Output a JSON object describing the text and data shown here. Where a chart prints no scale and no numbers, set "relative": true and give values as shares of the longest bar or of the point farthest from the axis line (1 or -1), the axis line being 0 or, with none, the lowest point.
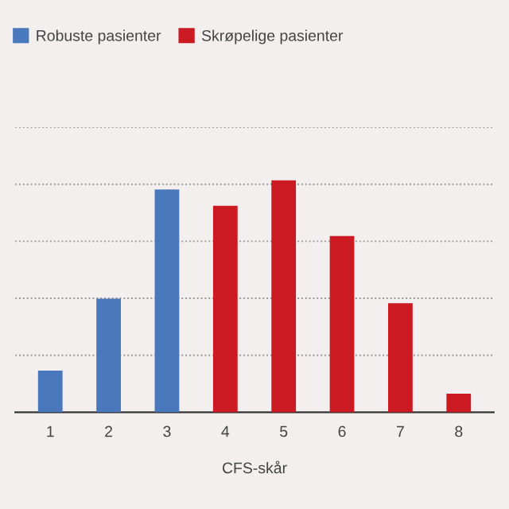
{
  "chart_data": {
    "type": "bar",
    "categories": [
      "1",
      "2",
      "3",
      "4",
      "5",
      "6",
      "7",
      "8"
    ],
    "xlabel": "CFS-skår",
    "relative": true,
    "grid": "y",
    "legend": "top left",
    "series": [
      {
        "name": "Robuste pasienter",
        "color": "#4a78bd",
        "values": [
          0.18,
          0.49,
          0.96,
          null,
          null,
          null,
          null,
          null
        ]
      },
      {
        "name": "Skrøpelige pasienter",
        "color": "#cc1a22",
        "values": [
          null,
          null,
          null,
          0.89,
          1,
          0.76,
          0.47,
          0.08
        ]
      }
    ]
  }
}
